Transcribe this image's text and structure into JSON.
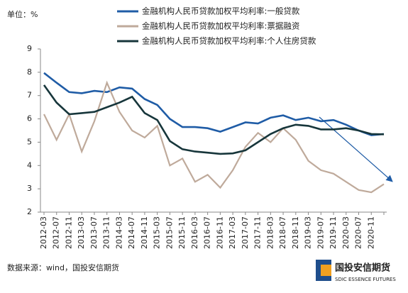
{
  "chart_data": {
    "type": "line",
    "unit_label": "单位：%",
    "source": "数据来源：wind，国投安信期货",
    "logo_text": "国投安信期货",
    "logo_subtext": "SDIC ESSENCE FUTURES",
    "categories": [
      "2012-03",
      "2012-07",
      "2012-11",
      "2013-03",
      "2013-07",
      "2013-11",
      "2014-03",
      "2014-07",
      "2014-11",
      "2015-03",
      "2015-07",
      "2015-11",
      "2016-03",
      "2016-07",
      "2016-11",
      "2017-03",
      "2017-07",
      "2017-11",
      "2018-03",
      "2018-07",
      "2018-11",
      "2019-03",
      "2019-07",
      "2019-11",
      "2020-03",
      "2020-07",
      "2020-11",
      null
    ],
    "series": [
      {
        "name": "金融机构人民币贷款加权平均利率:一般贷款",
        "color": "#1f5ca6",
        "values": [
          7.97,
          7.55,
          7.15,
          7.1,
          7.2,
          7.15,
          7.35,
          7.3,
          6.85,
          6.6,
          6.0,
          5.65,
          5.65,
          5.6,
          5.45,
          5.65,
          5.85,
          5.8,
          6.05,
          6.15,
          5.95,
          6.05,
          5.9,
          5.95,
          5.75,
          5.5,
          5.3,
          5.35
        ]
      },
      {
        "name": "金融机构人民币贷款加权平均利率:票据融资",
        "color": "#bfaa9b",
        "values": [
          6.2,
          5.1,
          6.2,
          4.6,
          5.9,
          7.55,
          6.3,
          5.5,
          5.2,
          5.7,
          4.0,
          4.3,
          3.3,
          3.6,
          3.05,
          3.8,
          4.8,
          5.4,
          5.0,
          5.6,
          5.1,
          4.2,
          3.8,
          3.65,
          3.3,
          2.95,
          2.85,
          3.2
        ]
      },
      {
        "name": "金融机构人民币贷款加权平均利率:个人住房贷款",
        "color": "#17363b",
        "values": [
          7.45,
          6.7,
          6.2,
          6.25,
          6.3,
          6.5,
          6.7,
          6.95,
          6.25,
          5.95,
          5.05,
          4.7,
          4.6,
          4.55,
          4.5,
          4.52,
          4.65,
          5.0,
          5.35,
          5.6,
          5.75,
          5.7,
          5.55,
          5.55,
          5.6,
          5.5,
          5.35,
          5.34
        ]
      }
    ],
    "ylim": [
      2,
      9
    ],
    "yticks": [
      2,
      3,
      4,
      5,
      6,
      7,
      8,
      9
    ]
  }
}
